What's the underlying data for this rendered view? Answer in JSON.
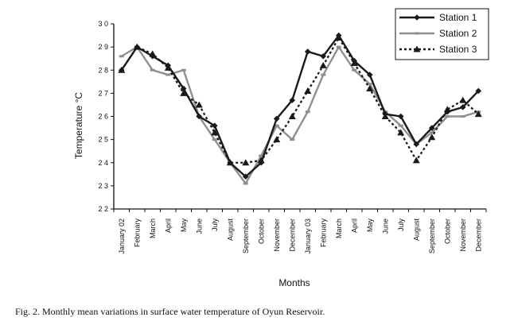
{
  "caption": "Fig. 2. Monthly mean variations in surface water temperature of Oyun Reservoir.",
  "chart_data": {
    "type": "line",
    "title": "",
    "xlabel": "Months",
    "ylabel": "Temperature °C",
    "ylim": [
      22,
      30
    ],
    "yticks": [
      22,
      23,
      24,
      25,
      26,
      27,
      28,
      29,
      30
    ],
    "ytick_labels": [
      "2 2",
      "2 3",
      "2 4",
      "2 5",
      "2 6",
      "2 7",
      "2 8",
      "2 9",
      "3 0"
    ],
    "categories": [
      "January 02",
      "February",
      "March",
      "April",
      "May",
      "June",
      "July",
      "August",
      "September",
      "October",
      "November",
      "December",
      "January 03",
      "February",
      "March",
      "April",
      "May",
      "June",
      "July",
      "August",
      "September",
      "October",
      "November",
      "December"
    ],
    "grid": false,
    "legend_position": "top-right",
    "series": [
      {
        "name": "Station 1",
        "color": "#1a1a1a",
        "dash": "solid",
        "marker": "diamond",
        "values": [
          28.0,
          29.0,
          28.6,
          28.2,
          27.2,
          26.0,
          25.6,
          24.0,
          23.4,
          24.0,
          25.9,
          26.7,
          28.8,
          28.6,
          29.5,
          28.4,
          27.8,
          26.1,
          26.0,
          24.8,
          25.5,
          26.2,
          26.4,
          27.1
        ]
      },
      {
        "name": "Station 2",
        "color": "#8f8f8f",
        "dash": "solid",
        "marker": "square",
        "values": [
          28.6,
          29.0,
          28.0,
          27.8,
          28.0,
          26.0,
          25.0,
          24.0,
          23.1,
          24.3,
          25.6,
          25.0,
          26.2,
          27.8,
          29.0,
          28.0,
          27.4,
          26.2,
          25.6,
          24.8,
          25.3,
          26.0,
          26.0,
          26.2
        ]
      },
      {
        "name": "Station 3",
        "color": "#1a1a1a",
        "dash": "dashed",
        "marker": "triangle",
        "values": [
          28.0,
          29.0,
          28.7,
          28.1,
          27.0,
          26.5,
          25.3,
          24.0,
          24.0,
          24.1,
          25.0,
          26.0,
          27.1,
          28.2,
          29.4,
          28.3,
          27.2,
          26.0,
          25.3,
          24.1,
          25.1,
          26.3,
          26.7,
          26.1
        ]
      }
    ]
  }
}
